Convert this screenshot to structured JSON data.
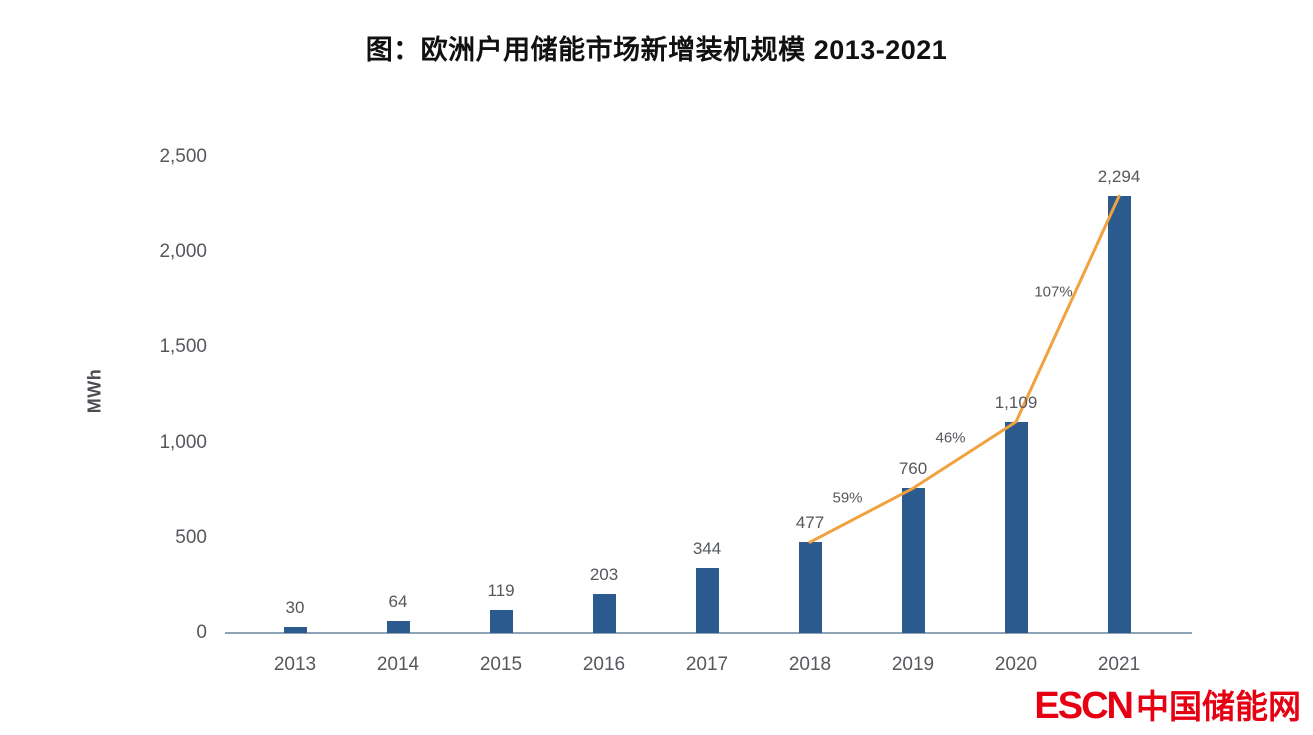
{
  "chart_data": {
    "type": "bar",
    "title": "图：欧洲户用储能市场新增装机规模 2013-2021",
    "xlabel": "",
    "ylabel": "MWh",
    "categories": [
      "2013",
      "2014",
      "2015",
      "2016",
      "2017",
      "2018",
      "2019",
      "2020",
      "2021"
    ],
    "values": [
      30,
      64,
      119,
      203,
      344,
      477,
      760,
      1109,
      2294
    ],
    "value_labels": [
      "30",
      "64",
      "119",
      "203",
      "344",
      "477",
      "760",
      "1,109",
      "2,294"
    ],
    "ylim": [
      0,
      2500
    ],
    "ytick_values": [
      0,
      500,
      1000,
      1500,
      2000,
      2500
    ],
    "ytick_labels": [
      "0",
      "500",
      "1,000",
      "1,500",
      "2,000",
      "2,500"
    ],
    "grid": false,
    "legend": false,
    "bar_color": "#2b5a8e",
    "line_overlay": {
      "type": "line",
      "x": [
        "2018",
        "2019",
        "2020",
        "2021"
      ],
      "y": [
        477,
        760,
        1109,
        2294
      ],
      "growth_labels": [
        "59%",
        "46%",
        "107%"
      ],
      "color": "#f0a23e"
    }
  },
  "logo": {
    "escn": "ESCN",
    "chinese": "中国储能网",
    "color": "#e60012"
  }
}
